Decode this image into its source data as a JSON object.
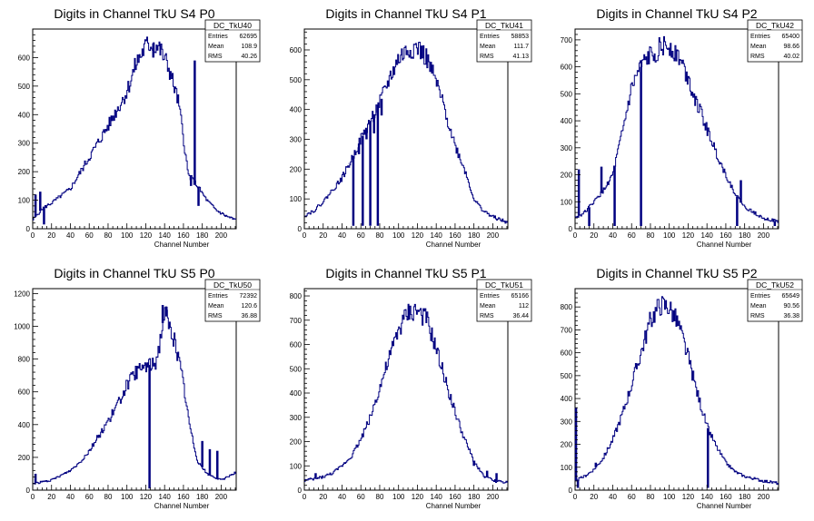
{
  "page": {
    "background": "#ffffff",
    "line_color": "#000080"
  },
  "chart_data": [
    {
      "type": "line",
      "title": "Digits in Channel TkU S4 P0",
      "xlabel": "Channel Number",
      "ylabel": "",
      "xlim": [
        0,
        216
      ],
      "ylim": [
        0,
        700
      ],
      "xticks": [
        0,
        20,
        40,
        60,
        80,
        100,
        120,
        140,
        160,
        180,
        200
      ],
      "yticks": [
        0,
        100,
        200,
        300,
        400,
        500,
        600
      ],
      "stats": {
        "name": "DC_TkU40",
        "entries": "62695",
        "mean": "108.9",
        "rms": "40.26"
      },
      "profile": [
        [
          0,
          30
        ],
        [
          10,
          70
        ],
        [
          20,
          90
        ],
        [
          40,
          140
        ],
        [
          60,
          250
        ],
        [
          80,
          360
        ],
        [
          100,
          480
        ],
        [
          110,
          580
        ],
        [
          120,
          640
        ],
        [
          128,
          650
        ],
        [
          135,
          630
        ],
        [
          145,
          560
        ],
        [
          155,
          440
        ],
        [
          160,
          320
        ],
        [
          165,
          190
        ],
        [
          175,
          150
        ],
        [
          185,
          100
        ],
        [
          195,
          65
        ],
        [
          205,
          45
        ],
        [
          216,
          30
        ]
      ],
      "spikes": [
        [
          3,
          120
        ],
        [
          8,
          130
        ],
        [
          128,
          600
        ],
        [
          147,
          540
        ],
        [
          168,
          150
        ],
        [
          172,
          590
        ],
        [
          176,
          80
        ],
        [
          12,
          15
        ]
      ]
    },
    {
      "type": "line",
      "title": "Digits in Channel TkU S4 P1",
      "xlabel": "Channel Number",
      "ylabel": "",
      "xlim": [
        0,
        216
      ],
      "ylim": [
        0,
        670
      ],
      "xticks": [
        0,
        20,
        40,
        60,
        80,
        100,
        120,
        140,
        160,
        180,
        200
      ],
      "yticks": [
        0,
        100,
        200,
        300,
        400,
        500,
        600
      ],
      "stats": {
        "name": "DC_TkU41",
        "entries": "58853",
        "mean": "111.7",
        "rms": "41.13"
      },
      "profile": [
        [
          0,
          45
        ],
        [
          10,
          60
        ],
        [
          20,
          90
        ],
        [
          30,
          130
        ],
        [
          40,
          170
        ],
        [
          50,
          230
        ],
        [
          60,
          300
        ],
        [
          70,
          360
        ],
        [
          80,
          420
        ],
        [
          90,
          500
        ],
        [
          100,
          570
        ],
        [
          110,
          600
        ],
        [
          120,
          610
        ],
        [
          130,
          570
        ],
        [
          140,
          490
        ],
        [
          150,
          390
        ],
        [
          160,
          280
        ],
        [
          170,
          200
        ],
        [
          180,
          100
        ],
        [
          190,
          60
        ],
        [
          200,
          40
        ],
        [
          216,
          20
        ]
      ],
      "spikes": [
        [
          48,
          220
        ],
        [
          52,
          10
        ],
        [
          58,
          250
        ],
        [
          62,
          10
        ],
        [
          66,
          300
        ],
        [
          70,
          10
        ],
        [
          74,
          320
        ],
        [
          78,
          10
        ],
        [
          82,
          380
        ]
      ]
    },
    {
      "type": "line",
      "title": "Digits in Channel TkU S4 P2",
      "xlabel": "Channel Number",
      "ylabel": "",
      "xlim": [
        0,
        216
      ],
      "ylim": [
        0,
        740
      ],
      "xticks": [
        0,
        20,
        40,
        60,
        80,
        100,
        120,
        140,
        160,
        180,
        200
      ],
      "yticks": [
        0,
        100,
        200,
        300,
        400,
        500,
        600,
        700
      ],
      "stats": {
        "name": "DC_TkU42",
        "entries": "65400",
        "mean": "98.66",
        "rms": "40.02"
      },
      "profile": [
        [
          0,
          40
        ],
        [
          10,
          60
        ],
        [
          20,
          100
        ],
        [
          30,
          140
        ],
        [
          40,
          200
        ],
        [
          50,
          350
        ],
        [
          60,
          520
        ],
        [
          70,
          600
        ],
        [
          80,
          640
        ],
        [
          90,
          670
        ],
        [
          100,
          680
        ],
        [
          110,
          640
        ],
        [
          120,
          560
        ],
        [
          130,
          460
        ],
        [
          140,
          370
        ],
        [
          150,
          280
        ],
        [
          160,
          200
        ],
        [
          170,
          130
        ],
        [
          180,
          80
        ],
        [
          190,
          60
        ],
        [
          200,
          40
        ],
        [
          216,
          25
        ]
      ],
      "spikes": [
        [
          4,
          220
        ],
        [
          15,
          10
        ],
        [
          28,
          230
        ],
        [
          42,
          10
        ],
        [
          70,
          10
        ],
        [
          78,
          650
        ],
        [
          172,
          10
        ],
        [
          176,
          180
        ],
        [
          212,
          10
        ]
      ]
    },
    {
      "type": "line",
      "title": "Digits in Channel TkU S5 P0",
      "xlabel": "Channel Number",
      "ylabel": "",
      "xlim": [
        0,
        216
      ],
      "ylim": [
        0,
        1230
      ],
      "xticks": [
        0,
        20,
        40,
        60,
        80,
        100,
        120,
        140,
        160,
        180,
        200
      ],
      "yticks": [
        0,
        200,
        400,
        600,
        800,
        1000,
        1200
      ],
      "stats": {
        "name": "DC_TkU50",
        "entries": "72392",
        "mean": "120.6",
        "rms": "36.88"
      },
      "profile": [
        [
          0,
          40
        ],
        [
          10,
          50
        ],
        [
          20,
          60
        ],
        [
          30,
          90
        ],
        [
          40,
          120
        ],
        [
          50,
          170
        ],
        [
          60,
          240
        ],
        [
          70,
          330
        ],
        [
          80,
          420
        ],
        [
          90,
          520
        ],
        [
          100,
          640
        ],
        [
          110,
          720
        ],
        [
          120,
          760
        ],
        [
          130,
          770
        ],
        [
          135,
          900
        ],
        [
          140,
          1100
        ],
        [
          145,
          1000
        ],
        [
          150,
          920
        ],
        [
          155,
          800
        ],
        [
          160,
          650
        ],
        [
          165,
          450
        ],
        [
          170,
          300
        ],
        [
          175,
          180
        ],
        [
          185,
          100
        ],
        [
          200,
          60
        ],
        [
          216,
          110
        ]
      ],
      "spikes": [
        [
          3,
          100
        ],
        [
          122,
          780
        ],
        [
          124,
          10
        ],
        [
          138,
          1130
        ],
        [
          142,
          1120
        ],
        [
          180,
          300
        ],
        [
          188,
          250
        ],
        [
          196,
          240
        ]
      ]
    },
    {
      "type": "line",
      "title": "Digits in Channel TkU S5 P1",
      "xlabel": "Channel Number",
      "ylabel": "",
      "xlim": [
        0,
        216
      ],
      "ylim": [
        0,
        830
      ],
      "xticks": [
        0,
        20,
        40,
        60,
        80,
        100,
        120,
        140,
        160,
        180,
        200
      ],
      "yticks": [
        0,
        100,
        200,
        300,
        400,
        500,
        600,
        700,
        800
      ],
      "stats": {
        "name": "DC_TkU51",
        "entries": "65166",
        "mean": "112",
        "rms": "36.44"
      },
      "profile": [
        [
          0,
          40
        ],
        [
          10,
          45
        ],
        [
          20,
          55
        ],
        [
          30,
          70
        ],
        [
          40,
          100
        ],
        [
          50,
          140
        ],
        [
          60,
          210
        ],
        [
          70,
          300
        ],
        [
          80,
          420
        ],
        [
          90,
          540
        ],
        [
          100,
          660
        ],
        [
          110,
          730
        ],
        [
          120,
          740
        ],
        [
          130,
          700
        ],
        [
          140,
          580
        ],
        [
          150,
          450
        ],
        [
          160,
          320
        ],
        [
          170,
          210
        ],
        [
          180,
          120
        ],
        [
          190,
          60
        ],
        [
          200,
          40
        ],
        [
          216,
          30
        ]
      ],
      "spikes": [
        [
          12,
          70
        ],
        [
          180,
          100
        ],
        [
          194,
          80
        ],
        [
          204,
          70
        ]
      ]
    },
    {
      "type": "line",
      "title": "Digits in Channel TkU S5 P2",
      "xlabel": "Channel Number",
      "ylabel": "",
      "xlim": [
        0,
        216
      ],
      "ylim": [
        0,
        880
      ],
      "xticks": [
        0,
        20,
        40,
        60,
        80,
        100,
        120,
        140,
        160,
        180,
        200
      ],
      "yticks": [
        0,
        100,
        200,
        300,
        400,
        500,
        600,
        700,
        800
      ],
      "stats": {
        "name": "DC_TkU52",
        "entries": "65649",
        "mean": "90.56",
        "rms": "36.38"
      },
      "profile": [
        [
          0,
          40
        ],
        [
          10,
          60
        ],
        [
          20,
          90
        ],
        [
          30,
          140
        ],
        [
          40,
          220
        ],
        [
          50,
          330
        ],
        [
          60,
          460
        ],
        [
          70,
          600
        ],
        [
          80,
          740
        ],
        [
          90,
          810
        ],
        [
          100,
          800
        ],
        [
          110,
          720
        ],
        [
          120,
          580
        ],
        [
          130,
          420
        ],
        [
          140,
          280
        ],
        [
          150,
          190
        ],
        [
          160,
          120
        ],
        [
          170,
          80
        ],
        [
          180,
          60
        ],
        [
          200,
          40
        ],
        [
          216,
          30
        ]
      ],
      "spikes": [
        [
          1,
          360
        ],
        [
          3,
          10
        ],
        [
          22,
          120
        ],
        [
          141,
          10
        ],
        [
          143,
          240
        ]
      ]
    }
  ]
}
